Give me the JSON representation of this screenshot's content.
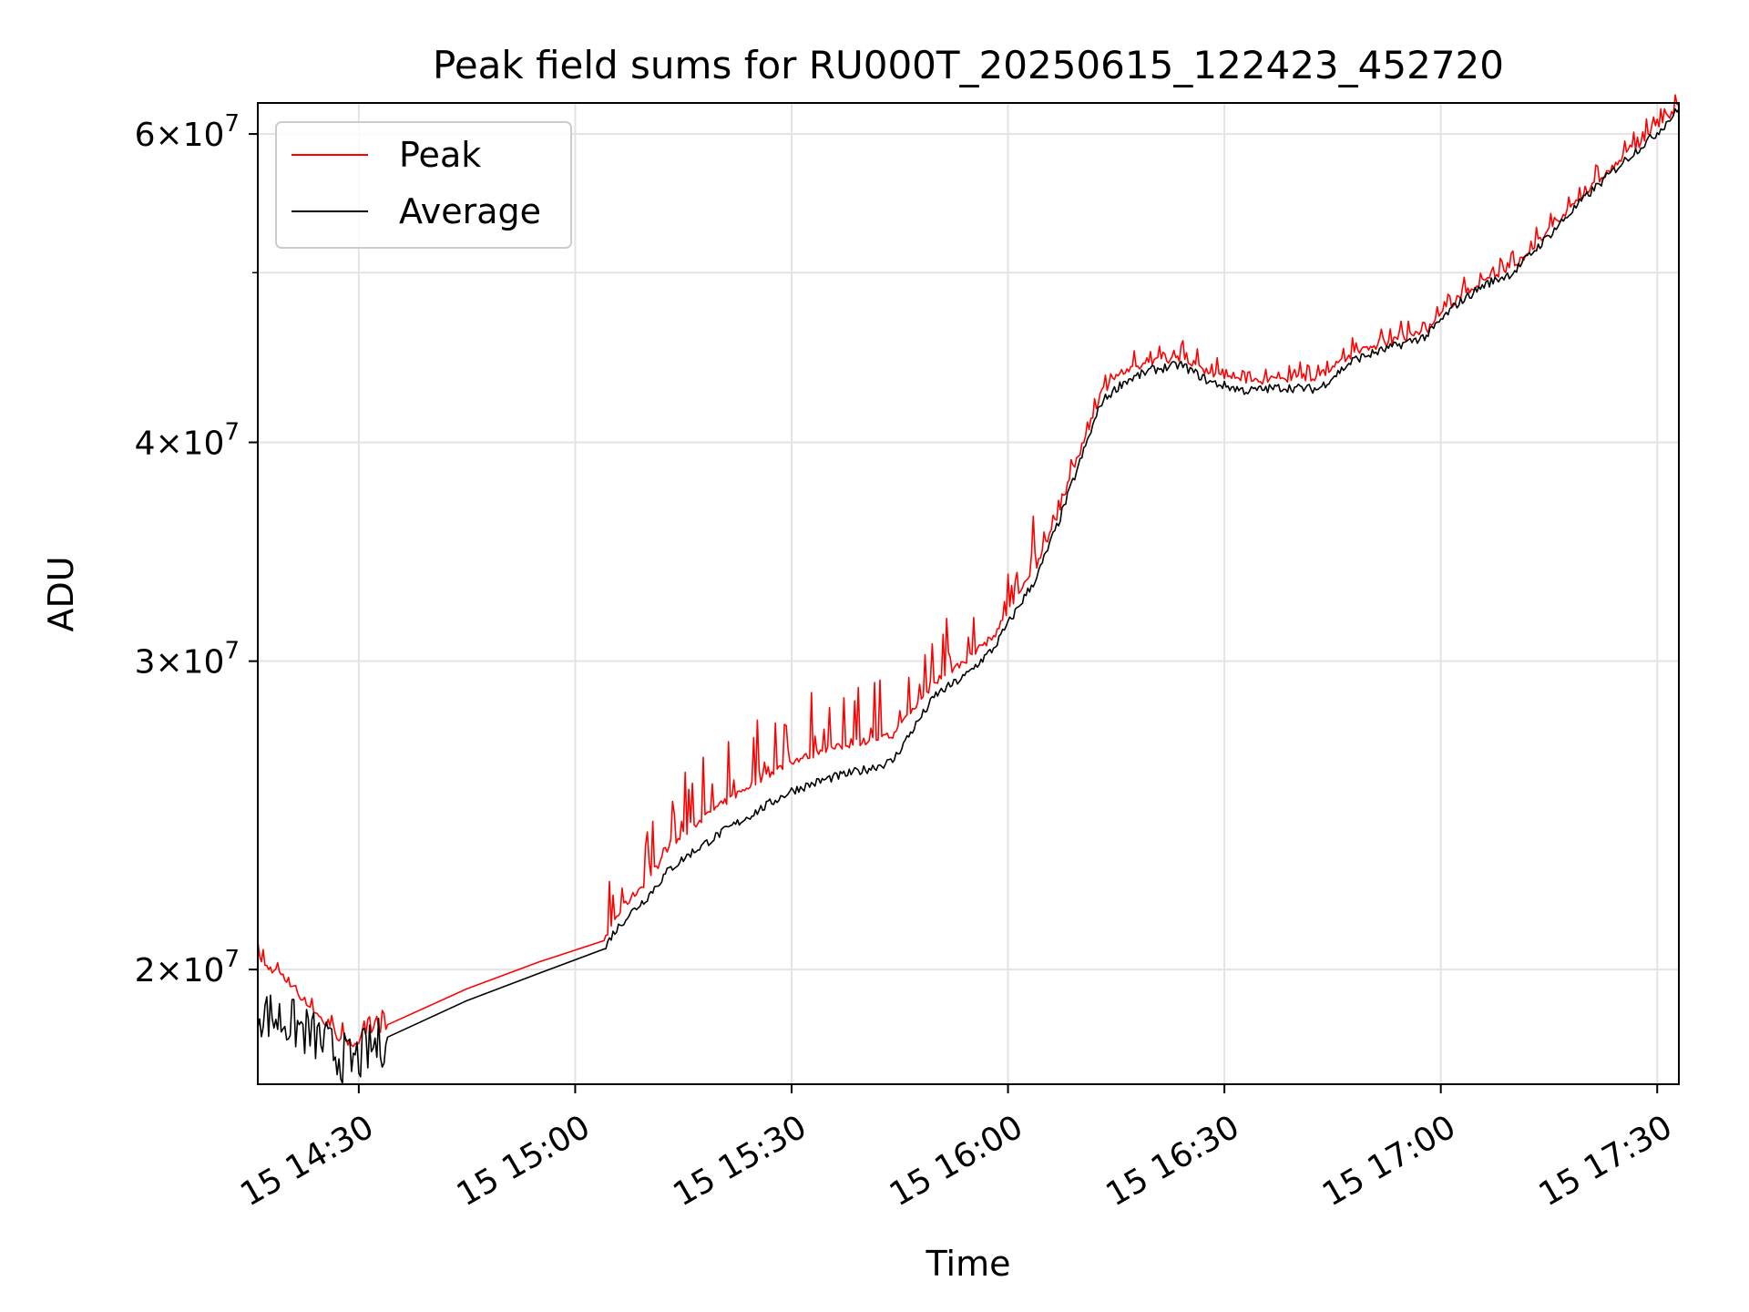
{
  "chart_data": {
    "type": "line",
    "title": "Peak field sums for RU000T_20250615_122423_452720",
    "xlabel": "Time",
    "ylabel": "ADU",
    "yscale": "log",
    "xlim": [
      "2025-06-15 14:16",
      "2025-06-15 17:33"
    ],
    "ylim": [
      17200000,
      62500000
    ],
    "grid": true,
    "legend": {
      "position": "upper-left",
      "entries": [
        "Peak",
        "Average"
      ]
    },
    "x_ticks": [
      "15 14:30",
      "15 15:00",
      "15 15:30",
      "15 16:00",
      "15 16:30",
      "15 17:00",
      "15 17:30"
    ],
    "y_ticks": [
      {
        "value": 20000000,
        "base": "2",
        "exponent": "7"
      },
      {
        "value": 30000000,
        "base": "3",
        "exponent": "7"
      },
      {
        "value": 40000000,
        "base": "4",
        "exponent": "7"
      },
      {
        "value": 60000000,
        "base": "6",
        "exponent": "7"
      }
    ],
    "y_minor_ticks": [
      50000000
    ],
    "series": [
      {
        "name": "Peak",
        "color": "#ff0000",
        "points": [
          [
            "2025-06-15 14:16",
            20300000
          ],
          [
            "2025-06-15 14:17",
            20100000
          ],
          [
            "2025-06-15 14:19",
            19900000
          ],
          [
            "2025-06-15 14:21",
            19500000
          ],
          [
            "2025-06-15 14:23",
            19100000
          ],
          [
            "2025-06-15 14:25",
            18700000
          ],
          [
            "2025-06-15 14:27",
            18300000
          ],
          [
            "2025-06-15 14:29",
            18100000
          ],
          [
            "2025-06-15 14:34",
            18600000
          ],
          [
            "2025-06-15 14:45",
            19500000
          ],
          [
            "2025-06-15 14:55",
            20200000
          ],
          [
            "2025-06-15 15:04",
            20700000
          ],
          [
            "2025-06-15 15:05",
            21200000
          ],
          [
            "2025-06-15 15:07",
            21800000
          ],
          [
            "2025-06-15 15:10",
            22500000
          ],
          [
            "2025-06-15 15:13",
            23400000
          ],
          [
            "2025-06-15 15:16",
            24100000
          ],
          [
            "2025-06-15 15:20",
            24800000
          ],
          [
            "2025-06-15 15:25",
            25600000
          ],
          [
            "2025-06-15 15:30",
            26300000
          ],
          [
            "2025-06-15 15:35",
            26700000
          ],
          [
            "2025-06-15 15:40",
            27000000
          ],
          [
            "2025-06-15 15:44",
            27200000
          ],
          [
            "2025-06-15 15:47",
            28200000
          ],
          [
            "2025-06-15 15:50",
            29200000
          ],
          [
            "2025-06-15 15:54",
            30000000
          ],
          [
            "2025-06-15 15:58",
            31000000
          ],
          [
            "2025-06-15 16:01",
            32500000
          ],
          [
            "2025-06-15 16:04",
            34000000
          ],
          [
            "2025-06-15 16:07",
            36500000
          ],
          [
            "2025-06-15 16:10",
            39500000
          ],
          [
            "2025-06-15 16:13",
            42800000
          ],
          [
            "2025-06-15 16:16",
            43800000
          ],
          [
            "2025-06-15 16:20",
            44500000
          ],
          [
            "2025-06-15 16:24",
            44700000
          ],
          [
            "2025-06-15 16:28",
            43800000
          ],
          [
            "2025-06-15 16:33",
            43300000
          ],
          [
            "2025-06-15 16:38",
            43500000
          ],
          [
            "2025-06-15 16:43",
            43600000
          ],
          [
            "2025-06-15 16:48",
            45000000
          ],
          [
            "2025-06-15 16:53",
            45600000
          ],
          [
            "2025-06-15 16:58",
            46300000
          ],
          [
            "2025-06-15 17:02",
            48200000
          ],
          [
            "2025-06-15 17:06",
            49500000
          ],
          [
            "2025-06-15 17:10",
            50300000
          ],
          [
            "2025-06-15 17:15",
            52800000
          ],
          [
            "2025-06-15 17:20",
            55500000
          ],
          [
            "2025-06-15 17:25",
            58000000
          ],
          [
            "2025-06-15 17:30",
            60500000
          ],
          [
            "2025-06-15 17:33",
            62300000
          ]
        ]
      },
      {
        "name": "Average",
        "color": "#000000",
        "points": [
          [
            "2025-06-15 14:16",
            19000000
          ],
          [
            "2025-06-15 14:18",
            18800000
          ],
          [
            "2025-06-15 14:21",
            18600000
          ],
          [
            "2025-06-15 14:24",
            18300000
          ],
          [
            "2025-06-15 14:27",
            17900000
          ],
          [
            "2025-06-15 14:29",
            17700000
          ],
          [
            "2025-06-15 14:34",
            18300000
          ],
          [
            "2025-06-15 14:45",
            19200000
          ],
          [
            "2025-06-15 14:55",
            19900000
          ],
          [
            "2025-06-15 15:04",
            20500000
          ],
          [
            "2025-06-15 15:05",
            20900000
          ],
          [
            "2025-06-15 15:07",
            21400000
          ],
          [
            "2025-06-15 15:10",
            22000000
          ],
          [
            "2025-06-15 15:13",
            22800000
          ],
          [
            "2025-06-15 15:16",
            23300000
          ],
          [
            "2025-06-15 15:20",
            23900000
          ],
          [
            "2025-06-15 15:25",
            24600000
          ],
          [
            "2025-06-15 15:30",
            25300000
          ],
          [
            "2025-06-15 15:35",
            25700000
          ],
          [
            "2025-06-15 15:40",
            26000000
          ],
          [
            "2025-06-15 15:44",
            26300000
          ],
          [
            "2025-06-15 15:47",
            27500000
          ],
          [
            "2025-06-15 15:50",
            28700000
          ],
          [
            "2025-06-15 15:54",
            29400000
          ],
          [
            "2025-06-15 15:58",
            30500000
          ],
          [
            "2025-06-15 16:01",
            32000000
          ],
          [
            "2025-06-15 16:04",
            33500000
          ],
          [
            "2025-06-15 16:07",
            36000000
          ],
          [
            "2025-06-15 16:10",
            39000000
          ],
          [
            "2025-06-15 16:13",
            42200000
          ],
          [
            "2025-06-15 16:16",
            43300000
          ],
          [
            "2025-06-15 16:20",
            44000000
          ],
          [
            "2025-06-15 16:24",
            44300000
          ],
          [
            "2025-06-15 16:28",
            43300000
          ],
          [
            "2025-06-15 16:33",
            42800000
          ],
          [
            "2025-06-15 16:38",
            43000000
          ],
          [
            "2025-06-15 16:43",
            42900000
          ],
          [
            "2025-06-15 16:48",
            44600000
          ],
          [
            "2025-06-15 16:53",
            45300000
          ],
          [
            "2025-06-15 16:58",
            46000000
          ],
          [
            "2025-06-15 17:02",
            47900000
          ],
          [
            "2025-06-15 17:06",
            49200000
          ],
          [
            "2025-06-15 17:10",
            50000000
          ],
          [
            "2025-06-15 17:15",
            52500000
          ],
          [
            "2025-06-15 17:20",
            55200000
          ],
          [
            "2025-06-15 17:25",
            57700000
          ],
          [
            "2025-06-15 17:30",
            60100000
          ],
          [
            "2025-06-15 17:33",
            62000000
          ]
        ]
      }
    ]
  }
}
